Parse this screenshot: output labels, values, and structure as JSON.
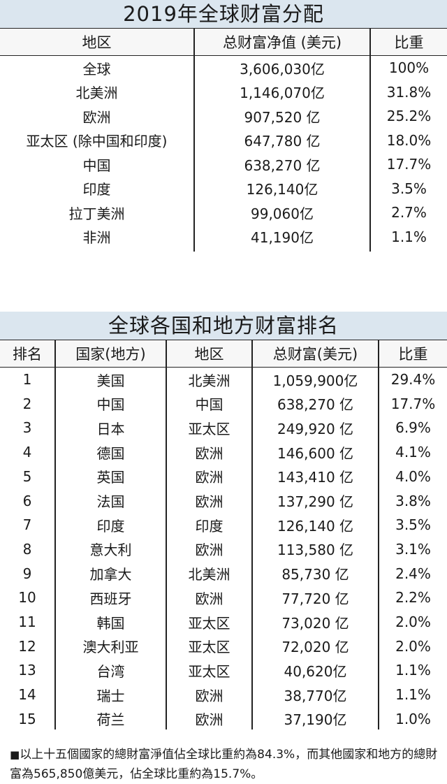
{
  "table1": {
    "title": "2019年全球财富分配",
    "headers": [
      "地区",
      "总财富净值 (美元)",
      "比重"
    ],
    "rows": [
      [
        "全球",
        "3,606,030亿",
        "100%"
      ],
      [
        "北美洲",
        "1,146,070亿",
        "31.8%"
      ],
      [
        "欧洲",
        "907,520 亿",
        "25.2%"
      ],
      [
        "亚太区 (除中国和印度)",
        "647,780 亿",
        "18.0%"
      ],
      [
        "中国",
        "638,270 亿",
        "17.7%"
      ],
      [
        "印度",
        "126,140亿",
        "3.5%"
      ],
      [
        "拉丁美洲",
        "99,060亿",
        "2.7%"
      ],
      [
        "非洲",
        "41,190亿",
        "1.1%"
      ]
    ]
  },
  "table2": {
    "title": "全球各国和地方财富排名",
    "headers": [
      "排名",
      "国家(地方)",
      "地区",
      "总财富(美元)",
      "比重"
    ],
    "rows": [
      [
        "1",
        "美国",
        "北美洲",
        "1,059,900亿",
        "29.4%"
      ],
      [
        "2",
        "中国",
        "中国",
        "638,270 亿",
        "17.7%"
      ],
      [
        "3",
        "日本",
        "亚太区",
        "249,920 亿",
        "6.9%"
      ],
      [
        "4",
        "德国",
        "欧洲",
        "146,600 亿",
        "4.1%"
      ],
      [
        "5",
        "英国",
        "欧洲",
        "143,410 亿",
        "4.0%"
      ],
      [
        "6",
        "法国",
        "欧洲",
        "137,290 亿",
        "3.8%"
      ],
      [
        "7",
        "印度",
        "印度",
        "126,140 亿",
        "3.5%"
      ],
      [
        "8",
        "意大利",
        "欧洲",
        "113,580 亿",
        "3.1%"
      ],
      [
        "9",
        "加拿大",
        "北美洲",
        "85,730 亿",
        "2.4%"
      ],
      [
        "10",
        "西班牙",
        "欧洲",
        "77,720 亿",
        "2.2%"
      ],
      [
        "11",
        "韩国",
        "亚太区",
        "73,020 亿",
        "2.0%"
      ],
      [
        "12",
        "澳大利亚",
        "亚太区",
        "72,020 亿",
        "2.0%"
      ],
      [
        "13",
        "台湾",
        "亚太区",
        "40,620亿",
        "1.1%"
      ],
      [
        "14",
        "瑞士",
        "欧洲",
        "38,770亿",
        "1.1%"
      ],
      [
        "15",
        "荷兰",
        "欧洲",
        "37,190亿",
        "1.0%"
      ]
    ]
  },
  "footnote": {
    "bullet": "■",
    "text": "以上十五個國家的總財富淨值佔全球比重約為84.3%，而其他國家和地方的總財富為565,850億美元，佔全球比重約為15.7%。"
  }
}
